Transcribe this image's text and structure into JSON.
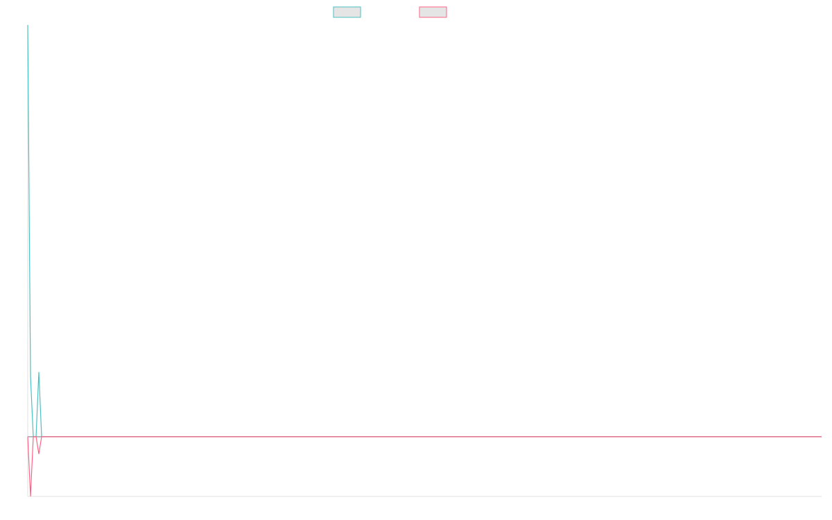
{
  "chart_data": {
    "type": "line",
    "title": "",
    "xlabel": "",
    "ylabel": "",
    "xlim": [
      0,
      286
    ],
    "ylim": [
      -14.5,
      100
    ],
    "grid": false,
    "legend": "top-center",
    "zero_line_color": "#9aa8b0",
    "axis_color": "#e0e0e0",
    "series": [
      {
        "color": "#4bc0c0",
        "legend_fill": "#e5e5e5",
        "points": [
          [
            0,
            100
          ],
          [
            1,
            14.6
          ],
          [
            2,
            0
          ],
          [
            3,
            0
          ],
          [
            4,
            15.7
          ],
          [
            5,
            0
          ],
          [
            286,
            0
          ]
        ]
      },
      {
        "color": "#ff6384",
        "legend_fill": "#e5e5e5",
        "points": [
          [
            0,
            0
          ],
          [
            1,
            -14.5
          ],
          [
            2,
            0
          ],
          [
            3,
            0
          ],
          [
            4,
            -4.2
          ],
          [
            5,
            0
          ],
          [
            286,
            0
          ]
        ]
      }
    ]
  }
}
